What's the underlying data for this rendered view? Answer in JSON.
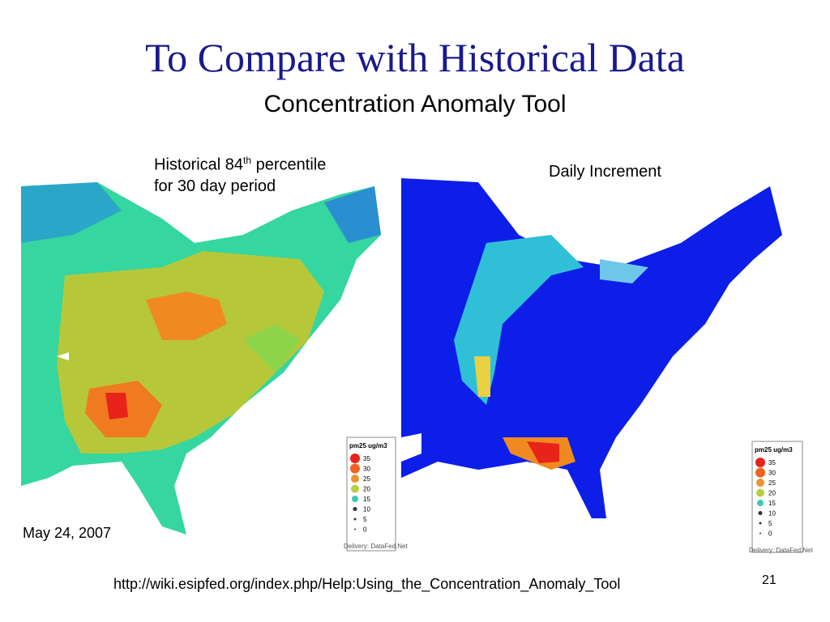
{
  "title": "To Compare with Historical Data",
  "subtitle": "Concentration Anomaly Tool",
  "maps": [
    {
      "caption": {
        "text": "Historical 84",
        "superscript": "th",
        "text_end": "percentile",
        "line2": "for 30 day period"
      },
      "legend": {
        "title": "pm25 ug/m3",
        "levels": [
          35,
          30,
          25,
          20,
          15,
          10,
          5,
          0
        ]
      },
      "credit": "Delivery: DataFed.Net"
    },
    {
      "caption": {
        "text": "Daily Increment"
      },
      "legend": {
        "title": "pm25 ug/m3",
        "levels": [
          35,
          30,
          25,
          20,
          15,
          10,
          5,
          0
        ]
      },
      "credit": "Delivery: DataFed.Net"
    }
  ],
  "date": "May 24, 2007",
  "url": "http://wiki.esipfed.org/index.php/Help:Using_the_Concentration_Anomaly_Tool",
  "page_number": 21
}
